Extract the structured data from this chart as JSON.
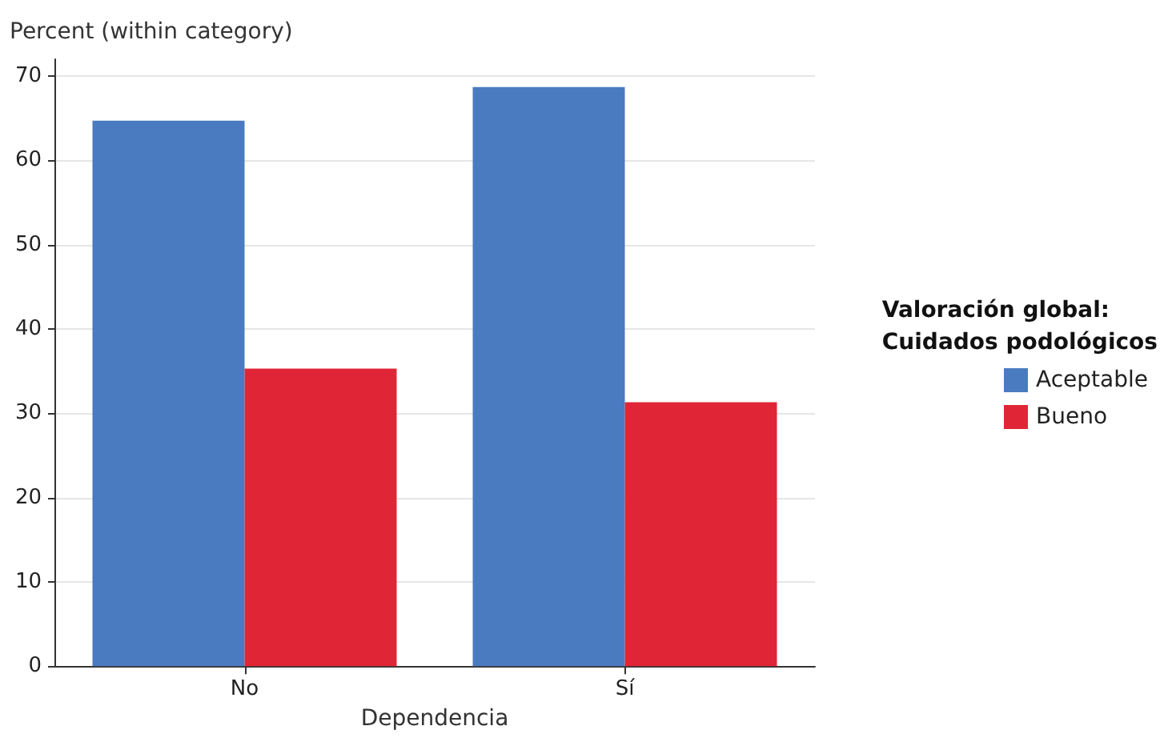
{
  "chart_data": {
    "type": "bar",
    "xlabel": "Dependencia",
    "ylabel": "Percent (within category)",
    "legend_title": "Valoración global:\nCuidados podológicos",
    "categories": [
      "No",
      "Sí"
    ],
    "series": [
      {
        "name": "Aceptable",
        "color": "#4a7bc1",
        "values": [
          64.7,
          68.7
        ]
      },
      {
        "name": "Bueno",
        "color": "#e02636",
        "values": [
          35.3,
          31.3
        ]
      }
    ],
    "ylim": [
      0,
      72
    ],
    "yticks": [
      0,
      10,
      20,
      30,
      40,
      50,
      60,
      70
    ],
    "grid": "y",
    "legend": "right"
  }
}
